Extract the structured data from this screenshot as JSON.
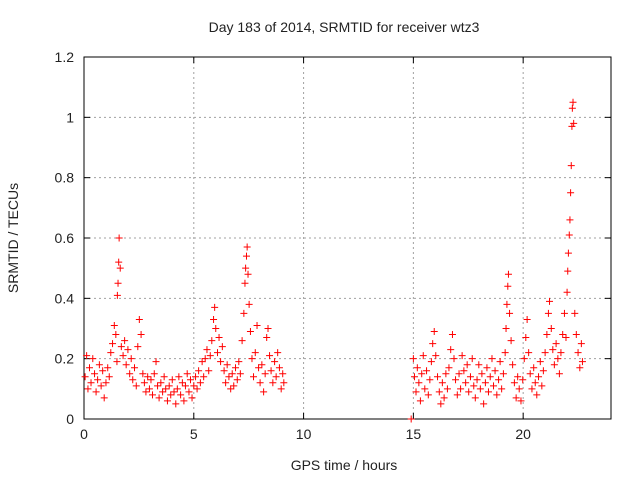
{
  "chart_data": {
    "type": "scatter",
    "title": "Day 183 of 2014, SRMTID for receiver wtz3",
    "xlabel": "GPS time / hours",
    "ylabel": "SRMTID / TECUs",
    "xlim": [
      0,
      24
    ],
    "ylim": [
      0,
      1.2
    ],
    "xticks": [
      0,
      5,
      10,
      15,
      20
    ],
    "xtick_labels": [
      "0",
      "5",
      "10",
      "15",
      "20"
    ],
    "yticks": [
      0,
      0.2,
      0.4,
      0.6,
      0.8,
      1.0,
      1.2
    ],
    "ytick_labels": [
      "0",
      "0.2",
      "0.4",
      "0.6",
      "0.8",
      "1",
      "1.2"
    ],
    "grid": true,
    "marker": "+",
    "series": [
      {
        "name": "SRMTID",
        "color": "#ff0000",
        "points": [
          [
            0.05,
            0.14
          ],
          [
            0.12,
            0.21
          ],
          [
            0.18,
            0.1
          ],
          [
            0.25,
            0.17
          ],
          [
            0.32,
            0.12
          ],
          [
            0.4,
            0.2
          ],
          [
            0.48,
            0.15
          ],
          [
            0.55,
            0.09
          ],
          [
            0.62,
            0.13
          ],
          [
            0.7,
            0.18
          ],
          [
            0.78,
            0.11
          ],
          [
            0.85,
            0.16
          ],
          [
            0.92,
            0.07
          ],
          [
            1.0,
            0.12
          ],
          [
            1.08,
            0.17
          ],
          [
            1.15,
            0.14
          ],
          [
            1.22,
            0.22
          ],
          [
            1.3,
            0.25
          ],
          [
            1.38,
            0.31
          ],
          [
            1.45,
            0.28
          ],
          [
            1.5,
            0.19
          ],
          [
            1.52,
            0.41
          ],
          [
            1.55,
            0.45
          ],
          [
            1.58,
            0.52
          ],
          [
            1.6,
            0.6
          ],
          [
            1.65,
            0.5
          ],
          [
            1.7,
            0.24
          ],
          [
            1.78,
            0.21
          ],
          [
            1.85,
            0.26
          ],
          [
            1.92,
            0.18
          ],
          [
            2.0,
            0.23
          ],
          [
            2.08,
            0.15
          ],
          [
            2.15,
            0.2
          ],
          [
            2.22,
            0.13
          ],
          [
            2.3,
            0.17
          ],
          [
            2.38,
            0.11
          ],
          [
            2.45,
            0.24
          ],
          [
            2.52,
            0.33
          ],
          [
            2.6,
            0.28
          ],
          [
            2.68,
            0.15
          ],
          [
            2.75,
            0.12
          ],
          [
            2.82,
            0.09
          ],
          [
            2.9,
            0.14
          ],
          [
            2.98,
            0.1
          ],
          [
            3.05,
            0.13
          ],
          [
            3.12,
            0.08
          ],
          [
            3.2,
            0.15
          ],
          [
            3.28,
            0.19
          ],
          [
            3.35,
            0.11
          ],
          [
            3.42,
            0.07
          ],
          [
            3.5,
            0.12
          ],
          [
            3.58,
            0.09
          ],
          [
            3.65,
            0.14
          ],
          [
            3.72,
            0.1
          ],
          [
            3.8,
            0.06
          ],
          [
            3.88,
            0.11
          ],
          [
            3.95,
            0.08
          ],
          [
            4.02,
            0.13
          ],
          [
            4.1,
            0.09
          ],
          [
            4.18,
            0.05
          ],
          [
            4.25,
            0.1
          ],
          [
            4.32,
            0.14
          ],
          [
            4.4,
            0.08
          ],
          [
            4.48,
            0.12
          ],
          [
            4.55,
            0.06
          ],
          [
            4.62,
            0.11
          ],
          [
            4.7,
            0.15
          ],
          [
            4.78,
            0.09
          ],
          [
            4.85,
            0.13
          ],
          [
            4.92,
            0.07
          ],
          [
            5.0,
            0.11
          ],
          [
            5.08,
            0.14
          ],
          [
            5.15,
            0.1
          ],
          [
            5.22,
            0.16
          ],
          [
            5.3,
            0.12
          ],
          [
            5.38,
            0.19
          ],
          [
            5.45,
            0.14
          ],
          [
            5.52,
            0.2
          ],
          [
            5.6,
            0.23
          ],
          [
            5.68,
            0.16
          ],
          [
            5.75,
            0.21
          ],
          [
            5.82,
            0.26
          ],
          [
            5.9,
            0.33
          ],
          [
            5.95,
            0.37
          ],
          [
            6.0,
            0.3
          ],
          [
            6.08,
            0.22
          ],
          [
            6.15,
            0.27
          ],
          [
            6.22,
            0.19
          ],
          [
            6.3,
            0.24
          ],
          [
            6.38,
            0.16
          ],
          [
            6.45,
            0.12
          ],
          [
            6.52,
            0.18
          ],
          [
            6.6,
            0.14
          ],
          [
            6.68,
            0.1
          ],
          [
            6.75,
            0.15
          ],
          [
            6.82,
            0.11
          ],
          [
            6.9,
            0.17
          ],
          [
            6.98,
            0.13
          ],
          [
            7.05,
            0.19
          ],
          [
            7.12,
            0.15
          ],
          [
            7.2,
            0.26
          ],
          [
            7.28,
            0.35
          ],
          [
            7.33,
            0.45
          ],
          [
            7.36,
            0.5
          ],
          [
            7.4,
            0.54
          ],
          [
            7.43,
            0.57
          ],
          [
            7.47,
            0.48
          ],
          [
            7.52,
            0.38
          ],
          [
            7.58,
            0.29
          ],
          [
            7.65,
            0.2
          ],
          [
            7.72,
            0.14
          ],
          [
            7.8,
            0.22
          ],
          [
            7.88,
            0.31
          ],
          [
            7.95,
            0.17
          ],
          [
            8.02,
            0.12
          ],
          [
            8.1,
            0.18
          ],
          [
            8.18,
            0.09
          ],
          [
            8.25,
            0.15
          ],
          [
            8.32,
            0.27
          ],
          [
            8.38,
            0.3
          ],
          [
            8.45,
            0.21
          ],
          [
            8.52,
            0.16
          ],
          [
            8.6,
            0.12
          ],
          [
            8.68,
            0.19
          ],
          [
            8.75,
            0.14
          ],
          [
            8.82,
            0.22
          ],
          [
            8.9,
            0.17
          ],
          [
            8.98,
            0.1
          ],
          [
            9.05,
            0.15
          ],
          [
            9.1,
            0.12
          ],
          [
            14.9,
            0.0
          ],
          [
            15.0,
            0.2
          ],
          [
            15.05,
            0.14
          ],
          [
            15.12,
            0.09
          ],
          [
            15.18,
            0.17
          ],
          [
            15.25,
            0.12
          ],
          [
            15.32,
            0.06
          ],
          [
            15.38,
            0.15
          ],
          [
            15.45,
            0.21
          ],
          [
            15.52,
            0.1
          ],
          [
            15.6,
            0.16
          ],
          [
            15.68,
            0.08
          ],
          [
            15.75,
            0.13
          ],
          [
            15.82,
            0.19
          ],
          [
            15.88,
            0.25
          ],
          [
            15.95,
            0.29
          ],
          [
            16.02,
            0.21
          ],
          [
            16.1,
            0.14
          ],
          [
            16.18,
            0.09
          ],
          [
            16.25,
            0.05
          ],
          [
            16.32,
            0.12
          ],
          [
            16.4,
            0.07
          ],
          [
            16.48,
            0.15
          ],
          [
            16.55,
            0.1
          ],
          [
            16.62,
            0.17
          ],
          [
            16.7,
            0.23
          ],
          [
            16.78,
            0.28
          ],
          [
            16.85,
            0.2
          ],
          [
            16.92,
            0.13
          ],
          [
            17.0,
            0.08
          ],
          [
            17.08,
            0.15
          ],
          [
            17.15,
            0.1
          ],
          [
            17.22,
            0.21
          ],
          [
            17.3,
            0.16
          ],
          [
            17.38,
            0.12
          ],
          [
            17.45,
            0.18
          ],
          [
            17.52,
            0.09
          ],
          [
            17.6,
            0.14
          ],
          [
            17.68,
            0.2
          ],
          [
            17.75,
            0.11
          ],
          [
            17.82,
            0.07
          ],
          [
            17.9,
            0.13
          ],
          [
            17.98,
            0.18
          ],
          [
            18.05,
            0.1
          ],
          [
            18.12,
            0.15
          ],
          [
            18.2,
            0.05
          ],
          [
            18.28,
            0.12
          ],
          [
            18.35,
            0.17
          ],
          [
            18.42,
            0.09
          ],
          [
            18.5,
            0.14
          ],
          [
            18.58,
            0.2
          ],
          [
            18.65,
            0.11
          ],
          [
            18.72,
            0.16
          ],
          [
            18.8,
            0.08
          ],
          [
            18.88,
            0.13
          ],
          [
            18.95,
            0.19
          ],
          [
            19.02,
            0.1
          ],
          [
            19.1,
            0.15
          ],
          [
            19.18,
            0.22
          ],
          [
            19.22,
            0.3
          ],
          [
            19.26,
            0.38
          ],
          [
            19.3,
            0.44
          ],
          [
            19.33,
            0.48
          ],
          [
            19.38,
            0.35
          ],
          [
            19.45,
            0.26
          ],
          [
            19.52,
            0.18
          ],
          [
            19.6,
            0.12
          ],
          [
            19.68,
            0.07
          ],
          [
            19.75,
            0.14
          ],
          [
            19.82,
            0.1
          ],
          [
            19.9,
            0.06
          ],
          [
            19.98,
            0.13
          ],
          [
            20.05,
            0.2
          ],
          [
            20.12,
            0.27
          ],
          [
            20.18,
            0.33
          ],
          [
            20.25,
            0.22
          ],
          [
            20.32,
            0.15
          ],
          [
            20.4,
            0.1
          ],
          [
            20.48,
            0.17
          ],
          [
            20.55,
            0.12
          ],
          [
            20.62,
            0.08
          ],
          [
            20.7,
            0.14
          ],
          [
            20.78,
            0.19
          ],
          [
            20.85,
            0.11
          ],
          [
            20.92,
            0.16
          ],
          [
            21.0,
            0.22
          ],
          [
            21.08,
            0.28
          ],
          [
            21.15,
            0.35
          ],
          [
            21.2,
            0.39
          ],
          [
            21.28,
            0.3
          ],
          [
            21.35,
            0.23
          ],
          [
            21.42,
            0.18
          ],
          [
            21.5,
            0.25
          ],
          [
            21.58,
            0.2
          ],
          [
            21.65,
            0.15
          ],
          [
            21.72,
            0.22
          ],
          [
            21.8,
            0.28
          ],
          [
            21.88,
            0.35
          ],
          [
            21.95,
            0.27
          ],
          [
            22.0,
            0.42
          ],
          [
            22.03,
            0.49
          ],
          [
            22.06,
            0.55
          ],
          [
            22.1,
            0.61
          ],
          [
            22.13,
            0.66
          ],
          [
            22.16,
            0.75
          ],
          [
            22.19,
            0.84
          ],
          [
            22.22,
            0.97
          ],
          [
            22.24,
            1.03
          ],
          [
            22.27,
            1.05
          ],
          [
            22.3,
            0.98
          ],
          [
            22.35,
            0.35
          ],
          [
            22.42,
            0.28
          ],
          [
            22.5,
            0.22
          ],
          [
            22.58,
            0.17
          ],
          [
            22.65,
            0.25
          ],
          [
            22.7,
            0.19
          ]
        ]
      }
    ]
  }
}
